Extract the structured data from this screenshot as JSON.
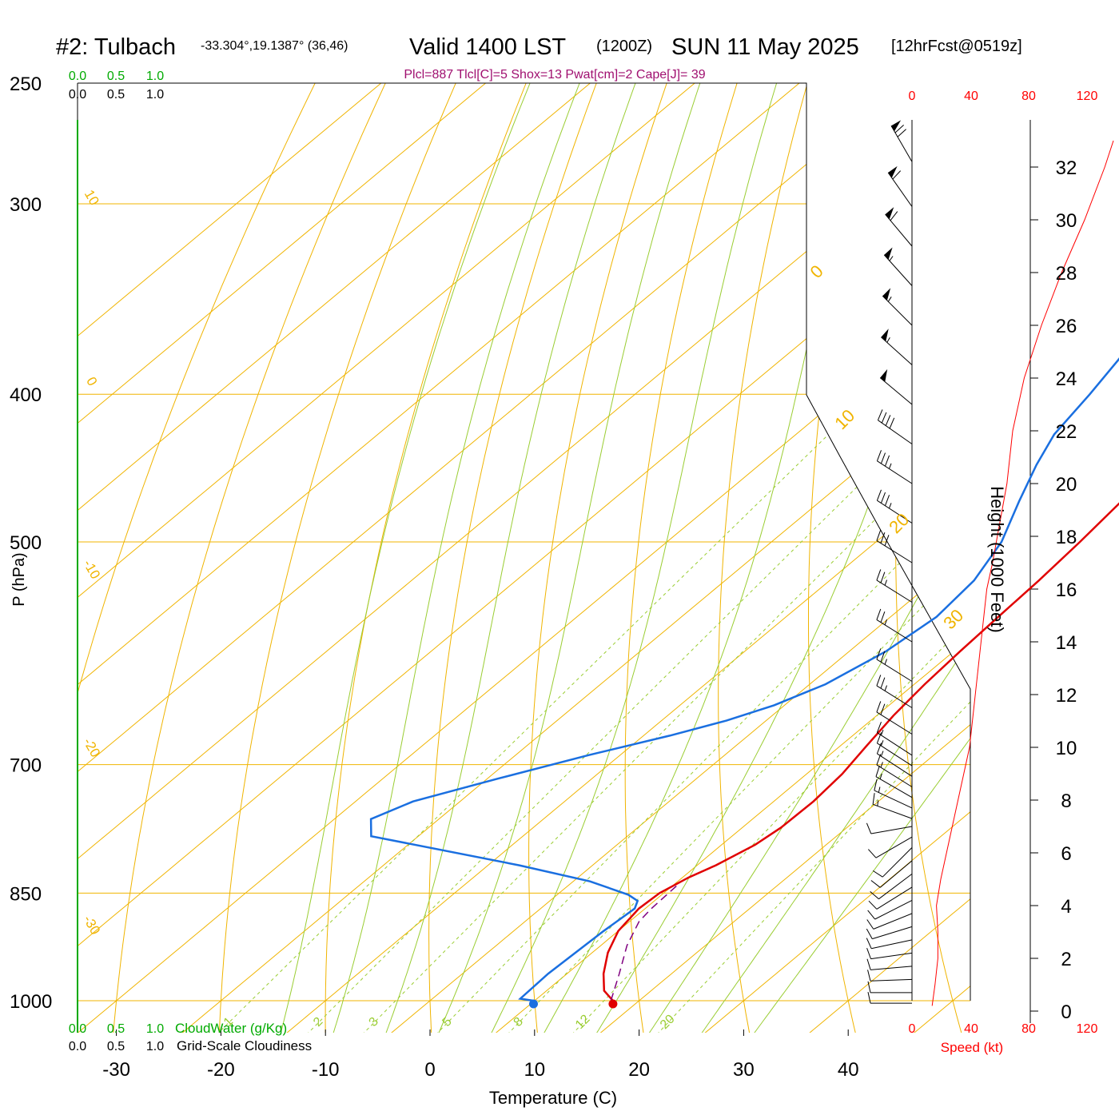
{
  "header": {
    "station": "#2: Tulbach",
    "coords": "-33.304°,19.1387° (36,46)",
    "valid": "Valid 1400 LST",
    "utc": "(1200Z)",
    "date": "SUN 11 May 2025",
    "forecast": "[12hrFcst@0519z]",
    "params": "Plcl=887 Tlcl[C]=5 Shox=13 Pwat[cm]=2 Cape[J]= 39"
  },
  "colors": {
    "temperature": "#e00000",
    "dewpoint": "#1a6fe0",
    "parcel": "#800080",
    "isotherm_isobar": "#f0b400",
    "moist_adiabat": "#9acd32",
    "mixing_ratio": "#9acd32",
    "cloud_water": "#00aa00",
    "wind_speed": "#ff0000"
  },
  "chart_data": {
    "type": "line",
    "xlabel": "Temperature (C)",
    "ylabel": "P (hPa)",
    "right_ylabel": "Height (1000 Feet)",
    "x_ticks": [
      "-30",
      "-20",
      "-10",
      "0",
      "10",
      "20",
      "30",
      "40"
    ],
    "p_ticks": [
      "250",
      "300",
      "400",
      "500",
      "700",
      "850",
      "1000"
    ],
    "height_ticks": [
      "0",
      "2",
      "4",
      "6",
      "8",
      "10",
      "12",
      "14",
      "16",
      "18",
      "20",
      "22",
      "24",
      "26",
      "28",
      "30",
      "32"
    ],
    "speed_ticks": [
      "0",
      "40",
      "80",
      "120"
    ],
    "speed_label": "Speed (kt)",
    "cloud_ticks": [
      "0.0",
      "0.5",
      "1.0"
    ],
    "cloud_water_label": "CloudWater (g/Kg)",
    "cloudiness_label": "Grid-Scale Cloudiness",
    "isotherm_labels": [
      "10",
      "0",
      "-10",
      "-20",
      "-30"
    ],
    "isotherm_labels_right": [
      "0",
      "10",
      "20",
      "30"
    ],
    "mixing_ratio_labels": [
      "1",
      "2",
      "3",
      "5",
      "8",
      "12",
      "20"
    ],
    "series": [
      {
        "name": "Temperature",
        "points": [
          [
            17.5,
            1000
          ],
          [
            15.5,
            985
          ],
          [
            13.5,
            960
          ],
          [
            11.5,
            930
          ],
          [
            10,
            900
          ],
          [
            9.4,
            870
          ],
          [
            9.6,
            850
          ],
          [
            10.6,
            830
          ],
          [
            11.8,
            815
          ],
          [
            13.2,
            790
          ],
          [
            13.7,
            770
          ],
          [
            13.8,
            740
          ],
          [
            13.4,
            710
          ],
          [
            12.5,
            680
          ],
          [
            11.6,
            650
          ],
          [
            11,
            620
          ],
          [
            10.6,
            590
          ],
          [
            10.3,
            560
          ],
          [
            10,
            530
          ],
          [
            9.5,
            500
          ],
          [
            8.8,
            470
          ],
          [
            7.7,
            440
          ],
          [
            6.2,
            410
          ],
          [
            4.4,
            380
          ],
          [
            2.4,
            355
          ],
          [
            0.3,
            333
          ],
          [
            -1.7,
            313
          ],
          [
            -4.3,
            290
          ],
          [
            -6.3,
            275
          ],
          [
            -8.2,
            262
          ]
        ]
      },
      {
        "name": "Dewpoint",
        "points": [
          [
            9.9,
            1000
          ],
          [
            8.4,
            997
          ],
          [
            8.2,
            960
          ],
          [
            8.6,
            900
          ],
          [
            9,
            870
          ],
          [
            8.4,
            860
          ],
          [
            6.8,
            852
          ],
          [
            1.6,
            835
          ],
          [
            -7,
            815
          ],
          [
            -24.5,
            780
          ],
          [
            -26.5,
            760
          ],
          [
            -24.5,
            740
          ],
          [
            -19,
            715
          ],
          [
            -13,
            690
          ],
          [
            -7.5,
            670
          ],
          [
            -3.8,
            655
          ],
          [
            -1,
            640
          ],
          [
            1.5,
            620
          ],
          [
            3.5,
            590
          ],
          [
            4.4,
            560
          ],
          [
            3.8,
            530
          ],
          [
            2,
            500
          ],
          [
            -1,
            470
          ],
          [
            -3.5,
            445
          ],
          [
            -5.3,
            425
          ],
          [
            -6.5,
            400
          ],
          [
            -7.7,
            380
          ],
          [
            -9.5,
            355
          ],
          [
            -11.2,
            330
          ],
          [
            -12.3,
            310
          ],
          [
            -13.6,
            290
          ],
          [
            -15.6,
            262
          ]
        ]
      },
      {
        "name": "Parcel",
        "points": [
          [
            17.3,
            1000
          ],
          [
            15,
            960
          ],
          [
            12.5,
            920
          ],
          [
            10.9,
            887
          ],
          [
            10.6,
            870
          ],
          [
            10.4,
            840
          ]
        ]
      }
    ],
    "surface_temperature": 17.5,
    "surface_dewpoint": 9.9,
    "wind_speed_profile": [
      [
        7,
        0.2
      ],
      [
        8,
        1
      ],
      [
        9,
        2
      ],
      [
        9,
        3
      ],
      [
        8.5,
        4
      ],
      [
        10,
        5
      ],
      [
        12,
        6
      ],
      [
        14,
        7
      ],
      [
        16,
        8
      ],
      [
        18,
        9
      ],
      [
        20,
        10
      ],
      [
        22,
        12
      ],
      [
        24,
        14
      ],
      [
        26,
        16
      ],
      [
        28,
        17
      ],
      [
        33,
        20
      ],
      [
        35,
        22
      ],
      [
        39,
        24
      ],
      [
        45,
        26
      ],
      [
        52,
        28
      ],
      [
        60,
        30
      ],
      [
        67,
        32
      ],
      [
        70,
        33
      ]
    ],
    "wind_barbs": [
      {
        "h": 0.3,
        "dir": 270,
        "spd": 12
      },
      {
        "h": 0.7,
        "dir": 270,
        "spd": 12
      },
      {
        "h": 1.2,
        "dir": 268,
        "spd": 12
      },
      {
        "h": 1.7,
        "dir": 265,
        "spd": 12
      },
      {
        "h": 2.2,
        "dir": 262,
        "spd": 12
      },
      {
        "h": 2.7,
        "dir": 258,
        "spd": 12
      },
      {
        "h": 3.2,
        "dir": 253,
        "spd": 12
      },
      {
        "h": 3.7,
        "dir": 248,
        "spd": 12
      },
      {
        "h": 4.2,
        "dir": 243,
        "spd": 12
      },
      {
        "h": 4.7,
        "dir": 238,
        "spd": 12
      },
      {
        "h": 5.2,
        "dir": 233,
        "spd": 12
      },
      {
        "h": 5.7,
        "dir": 230,
        "spd": 10
      },
      {
        "h": 6.2,
        "dir": 225,
        "spd": 10
      },
      {
        "h": 6.6,
        "dir": 240,
        "spd": 10
      },
      {
        "h": 7.0,
        "dir": 260,
        "spd": 12
      },
      {
        "h": 7.3,
        "dir": 290,
        "spd": 15
      },
      {
        "h": 7.7,
        "dir": 295,
        "spd": 15
      },
      {
        "h": 8.1,
        "dir": 300,
        "spd": 15
      },
      {
        "h": 8.5,
        "dir": 302,
        "spd": 15
      },
      {
        "h": 8.9,
        "dir": 303,
        "spd": 15
      },
      {
        "h": 9.3,
        "dir": 303,
        "spd": 15
      },
      {
        "h": 9.7,
        "dir": 303,
        "spd": 15
      },
      {
        "h": 10.5,
        "dir": 302,
        "spd": 20
      },
      {
        "h": 11.5,
        "dir": 302,
        "spd": 25
      },
      {
        "h": 12.5,
        "dir": 302,
        "spd": 25
      },
      {
        "h": 14,
        "dir": 302,
        "spd": 25
      },
      {
        "h": 15.5,
        "dir": 302,
        "spd": 25
      },
      {
        "h": 17,
        "dir": 302,
        "spd": 30
      },
      {
        "h": 18.5,
        "dir": 303,
        "spd": 35
      },
      {
        "h": 20,
        "dir": 303,
        "spd": 35
      },
      {
        "h": 21.5,
        "dir": 305,
        "spd": 40
      },
      {
        "h": 23,
        "dir": 310,
        "spd": 50
      },
      {
        "h": 24.5,
        "dir": 312,
        "spd": 55
      },
      {
        "h": 26,
        "dir": 315,
        "spd": 55
      },
      {
        "h": 27.5,
        "dir": 318,
        "spd": 55
      },
      {
        "h": 29,
        "dir": 320,
        "spd": 60
      },
      {
        "h": 30.5,
        "dir": 325,
        "spd": 60
      },
      {
        "h": 32.2,
        "dir": 330,
        "spd": 70
      }
    ]
  }
}
